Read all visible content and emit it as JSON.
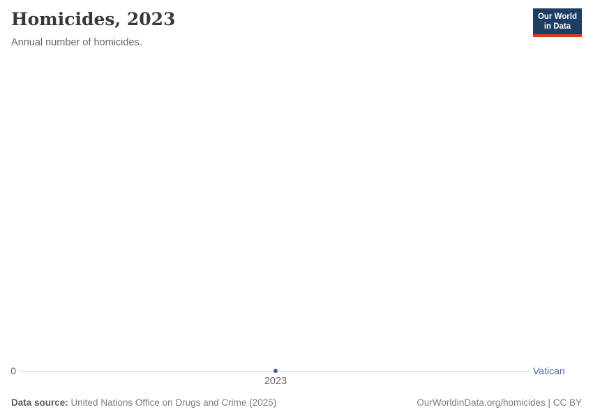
{
  "header": {
    "title": "Homicides, 2023",
    "subtitle": "Annual number of homicides.",
    "logo": {
      "line1": "Our World",
      "line2": "in Data"
    }
  },
  "chart_data": {
    "type": "line",
    "title": "Homicides, 2023",
    "subtitle": "Annual number of homicides.",
    "series": [
      {
        "name": "Vatican",
        "x": [
          2023
        ],
        "values": [
          0
        ]
      }
    ],
    "x_ticks": [
      "2023"
    ],
    "y_ticks": [
      "0"
    ],
    "xlabel": "",
    "ylabel": "",
    "ylim": [
      0,
      0
    ],
    "grid": false,
    "legend_position": "right-of-axis-end",
    "point_color": "#40618f",
    "entity_label_color": "#4c6a9c"
  },
  "footer": {
    "source_label": "Data source:",
    "source_text": "United Nations Office on Drugs and Crime (2025)",
    "attribution": "OurWorldinData.org/homicides | CC BY"
  },
  "colors": {
    "logo_navy": "#1d3d63",
    "logo_red": "#dc3a2e",
    "title_text": "#383838",
    "subtitle_text": "#666666",
    "axis_line": "#cccccc",
    "tick_text": "#666666",
    "entity_blue": "#4c6a9c",
    "footer_gray": "#858585"
  }
}
